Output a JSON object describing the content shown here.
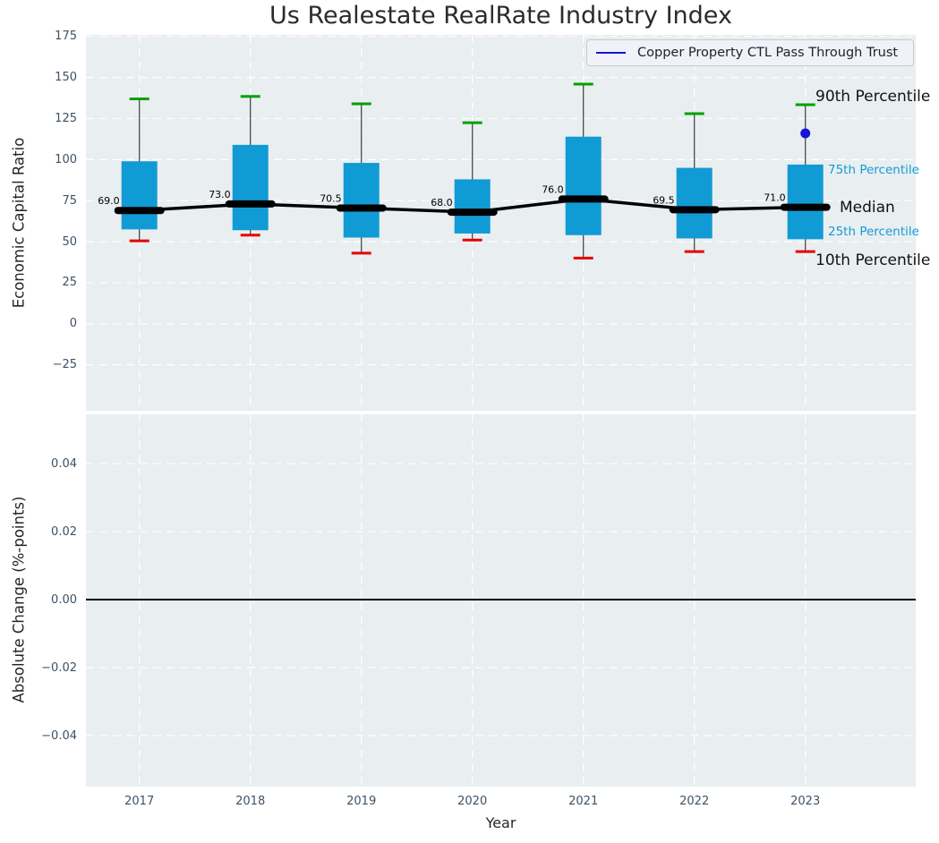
{
  "annotations": {
    "p90": "90th Percentile",
    "p75": "75th Percentile",
    "median": "Median",
    "p25": "25th Percentile",
    "p10": "10th Percentile"
  },
  "chart_data": [
    {
      "type": "boxplot",
      "title": "Us Realestate RealRate Industry Index",
      "ylabel": "Economic Capital Ratio",
      "categories": [
        "2017",
        "2018",
        "2019",
        "2020",
        "2021",
        "2022",
        "2023"
      ],
      "yticks": [
        175,
        150,
        125,
        100,
        75,
        50,
        25,
        0,
        -25
      ],
      "ytick_labels": [
        "175",
        "150",
        "125",
        "100",
        "75",
        "50",
        "25",
        "0",
        "−25"
      ],
      "ylim": [
        -53,
        176
      ],
      "grid": true,
      "legend_position": "upper right",
      "boxes": [
        {
          "year": "2017",
          "p10": 50.5,
          "p25": 57.5,
          "median": 69.0,
          "p75": 99,
          "p90": 137,
          "median_label": "69.0"
        },
        {
          "year": "2018",
          "p10": 54,
          "p25": 57,
          "median": 73.0,
          "p75": 109,
          "p90": 138.5,
          "median_label": "73.0"
        },
        {
          "year": "2019",
          "p10": 43,
          "p25": 52.5,
          "median": 70.5,
          "p75": 98,
          "p90": 134,
          "median_label": "70.5"
        },
        {
          "year": "2020",
          "p10": 51,
          "p25": 55,
          "median": 68.0,
          "p75": 88,
          "p90": 122.5,
          "median_label": "68.0"
        },
        {
          "year": "2021",
          "p10": 40,
          "p25": 54,
          "median": 76.0,
          "p75": 114,
          "p90": 146,
          "median_label": "76.0"
        },
        {
          "year": "2022",
          "p10": 44,
          "p25": 52,
          "median": 69.5,
          "p75": 95,
          "p90": 128,
          "median_label": "69.5"
        },
        {
          "year": "2023",
          "p10": 44,
          "p25": 51.5,
          "median": 71.0,
          "p75": 97,
          "p90": 133.5,
          "median_label": "71.0"
        }
      ],
      "median_line_values": [
        69.0,
        73.0,
        70.5,
        68.0,
        76.0,
        69.5,
        71.0
      ],
      "company_series": {
        "name": "Copper Property CTL Pass Through Trust",
        "color": "#1414dd",
        "points": [
          {
            "category": "2023",
            "value": 116
          }
        ]
      },
      "colors": {
        "box_fill": "#109bd5",
        "whisker": "#3c3c3c",
        "cap_high": "#00a000",
        "cap_low": "#e60000",
        "median": "#000000",
        "grid": "#ffffff",
        "panel_background": "#e9eef0",
        "tick_label": "#3d5166"
      }
    },
    {
      "type": "line",
      "ylabel": "Absolute Change (%-points)",
      "xlabel": "Year",
      "categories": [
        "2017",
        "2018",
        "2019",
        "2020",
        "2021",
        "2022",
        "2023"
      ],
      "yticks": [
        0.04,
        0.02,
        0.0,
        -0.02,
        -0.04
      ],
      "ytick_labels": [
        "0.04",
        "0.02",
        "0.00",
        "−0.02",
        "−0.04"
      ],
      "ylim": [
        -0.055,
        0.0545
      ],
      "grid": true,
      "zero_line": 0.0,
      "series": []
    }
  ]
}
